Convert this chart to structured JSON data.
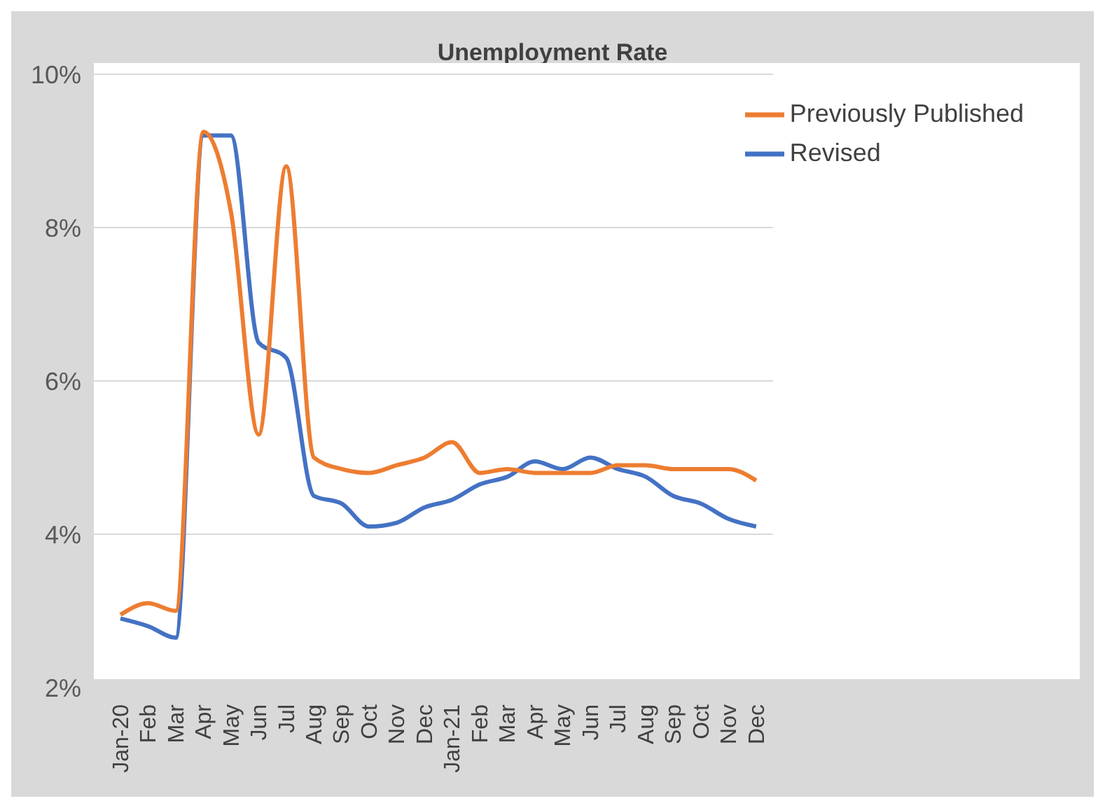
{
  "chart_data": {
    "type": "line",
    "title": "Unemployment Rate",
    "categories": [
      "Jan-20",
      "Feb",
      "Mar",
      "Apr",
      "May",
      "Jun",
      "Jul",
      "Aug",
      "Sep",
      "Oct",
      "Nov",
      "Dec",
      "Jan-21",
      "Feb",
      "Mar",
      "Apr",
      "May",
      "Jun",
      "Jul",
      "Aug",
      "Sep",
      "Oct",
      "Nov",
      "Dec"
    ],
    "series": [
      {
        "name": "Revised",
        "color": "#4472c4",
        "values": [
          2.9,
          2.8,
          2.65,
          9.2,
          9.2,
          6.5,
          6.3,
          4.5,
          4.4,
          4.1,
          4.15,
          4.35,
          4.45,
          4.65,
          4.75,
          4.95,
          4.85,
          5.0,
          4.85,
          4.75,
          4.5,
          4.4,
          4.2,
          4.1
        ]
      },
      {
        "name": "Previously Published",
        "color": "#ed7d31",
        "values": [
          2.95,
          3.1,
          3.0,
          9.25,
          8.2,
          5.3,
          8.8,
          5.0,
          4.85,
          4.8,
          4.9,
          5.0,
          5.2,
          4.8,
          4.85,
          4.8,
          4.8,
          4.8,
          4.9,
          4.9,
          4.85,
          4.85,
          4.85,
          4.7
        ]
      }
    ],
    "ylim": [
      2,
      10
    ],
    "yticks": [
      {
        "value": 2,
        "label": "2%"
      },
      {
        "value": 4,
        "label": "4%"
      },
      {
        "value": 6,
        "label": "6%"
      },
      {
        "value": 8,
        "label": "8%"
      },
      {
        "value": 10,
        "label": "10%"
      }
    ],
    "grid": "y",
    "legend": "top right",
    "marker": "none",
    "line_style": "solid"
  }
}
